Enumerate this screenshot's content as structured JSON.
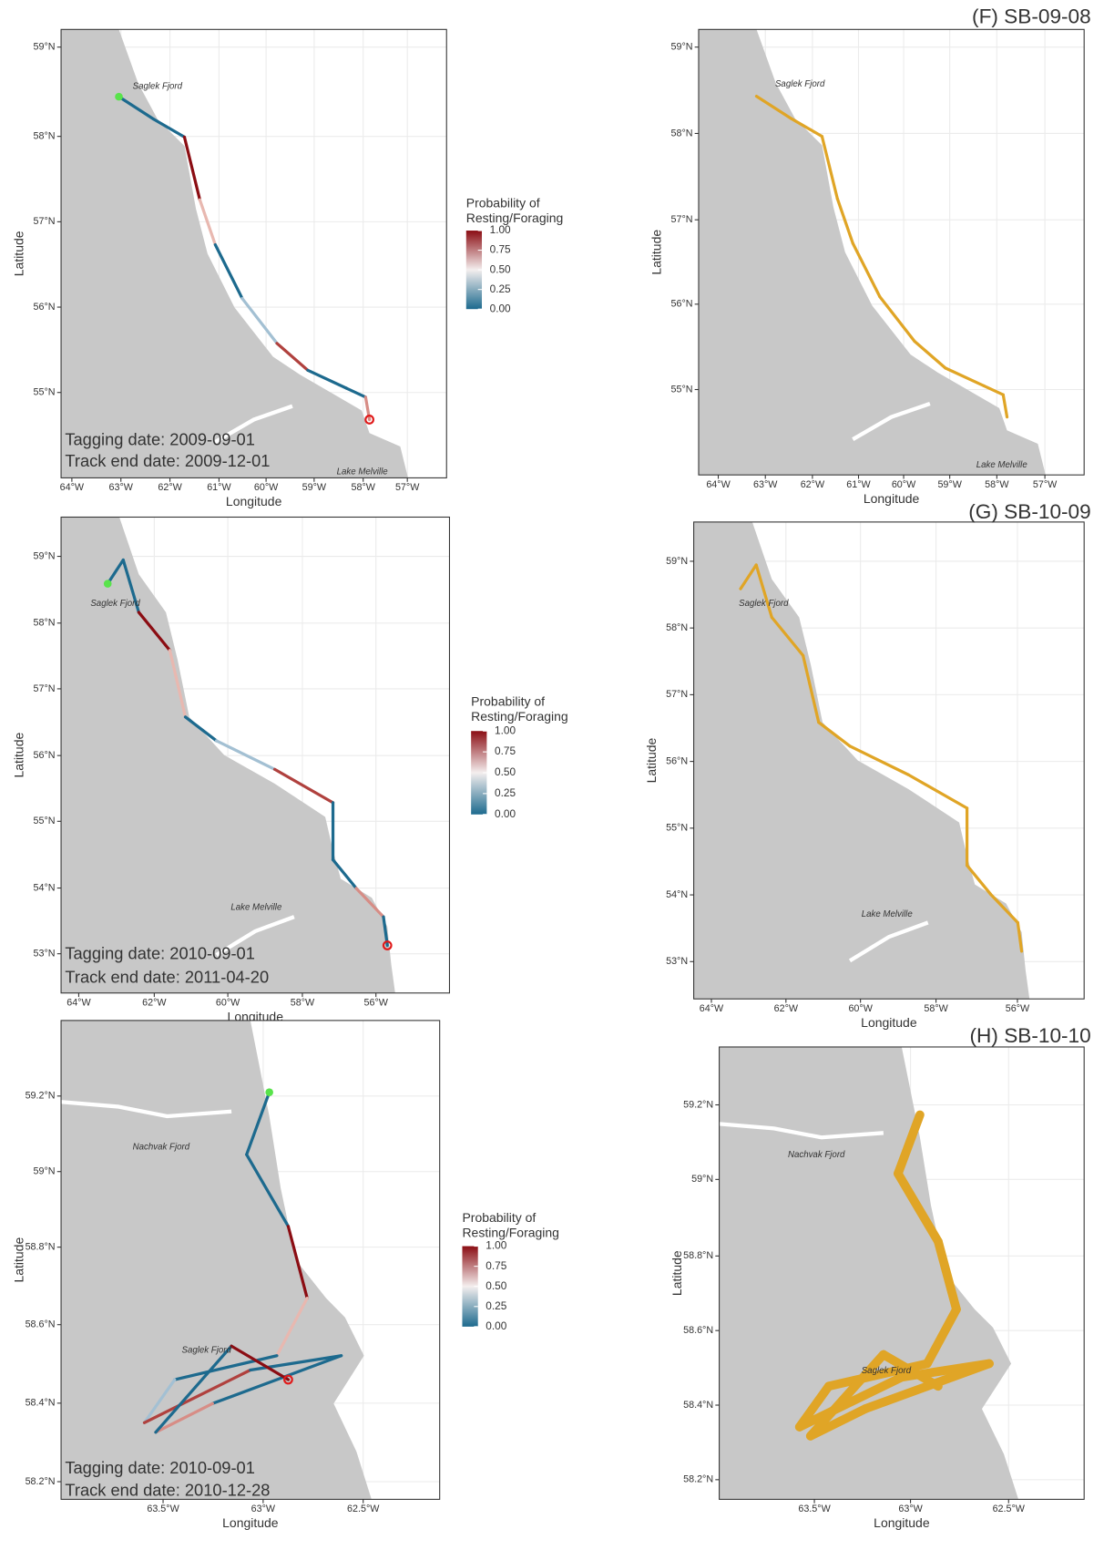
{
  "panels": [
    {
      "x_ticks": [
        "64°W",
        "63°W",
        "62°W",
        "61°W",
        "60°W",
        "59°W",
        "58°W",
        "57°W"
      ],
      "y_ticks": [
        "59°N",
        "58°N",
        "57°N",
        "56°N",
        "55°N"
      ],
      "x_label": "Longitude",
      "y_label": "Latitude",
      "places": [
        "Saglek Fjord",
        "Lake Melville"
      ],
      "annotations": [
        "Tagging date: 2009-09-01",
        "Track end date: 2009-12-01"
      ]
    },
    {
      "title": "(F) SB-09-08",
      "x_ticks": [
        "64°W",
        "63°W",
        "62°W",
        "61°W",
        "60°W",
        "59°W",
        "58°W",
        "57°W"
      ],
      "y_ticks": [
        "59°N",
        "58°N",
        "57°N",
        "56°N",
        "55°N"
      ],
      "x_label": "Longitude",
      "y_label": "Latitude",
      "places": [
        "Saglek Fjord",
        "Lake Melville"
      ]
    },
    {
      "x_ticks": [
        "64°W",
        "62°W",
        "60°W",
        "58°W",
        "56°W"
      ],
      "y_ticks": [
        "59°N",
        "58°N",
        "57°N",
        "56°N",
        "55°N",
        "54°N",
        "53°N"
      ],
      "x_label": "Longitude",
      "y_label": "Latitude",
      "places": [
        "Saglek Fjord",
        "Lake Melville"
      ],
      "annotations": [
        "Tagging date: 2010-09-01",
        "Track end date: 2011-04-20"
      ]
    },
    {
      "title": "(G) SB-10-09",
      "x_ticks": [
        "64°W",
        "62°W",
        "60°W",
        "58°W",
        "56°W"
      ],
      "y_ticks": [
        "59°N",
        "58°N",
        "57°N",
        "56°N",
        "55°N",
        "54°N",
        "53°N"
      ],
      "x_label": "Longitude",
      "y_label": "Latitude",
      "places": [
        "Saglek Fjord",
        "Lake Melville"
      ]
    },
    {
      "x_ticks": [
        "63.5°W",
        "63°W",
        "62.5°W"
      ],
      "y_ticks": [
        "59.2°N",
        "59°N",
        "58.8°N",
        "58.6°N",
        "58.4°N",
        "58.2°N"
      ],
      "x_label": "Longitude",
      "y_label": "Latitude",
      "places": [
        "Nachvak Fjord",
        "Saglek Fjord"
      ],
      "annotations": [
        "Tagging date: 2010-09-01",
        "Track end date: 2010-12-28"
      ]
    },
    {
      "title": "(H) SB-10-10",
      "x_ticks": [
        "63.5°W",
        "63°W",
        "62.5°W"
      ],
      "y_ticks": [
        "59.2°N",
        "59°N",
        "58.8°N",
        "58.6°N",
        "58.4°N",
        "58.2°N"
      ],
      "x_label": "Longitude",
      "y_label": "Latitude",
      "places": [
        "Nachvak Fjord",
        "Saglek Fjord"
      ]
    }
  ],
  "legends": [
    {
      "title_lines": [
        "Probability of",
        "Resting/Foraging"
      ],
      "ticks": [
        "1.00",
        "0.75",
        "0.50",
        "0.25",
        "0.00"
      ]
    },
    {
      "title_lines": [
        "Probability of",
        "Resting/Foraging"
      ],
      "ticks": [
        "1.00",
        "0.75",
        "0.50",
        "0.25",
        "0.00"
      ]
    },
    {
      "title_lines": [
        "Probability of",
        "Resting/Foraging"
      ],
      "ticks": [
        "1.00",
        "0.75",
        "0.50",
        "0.25",
        "0.00"
      ]
    }
  ]
}
